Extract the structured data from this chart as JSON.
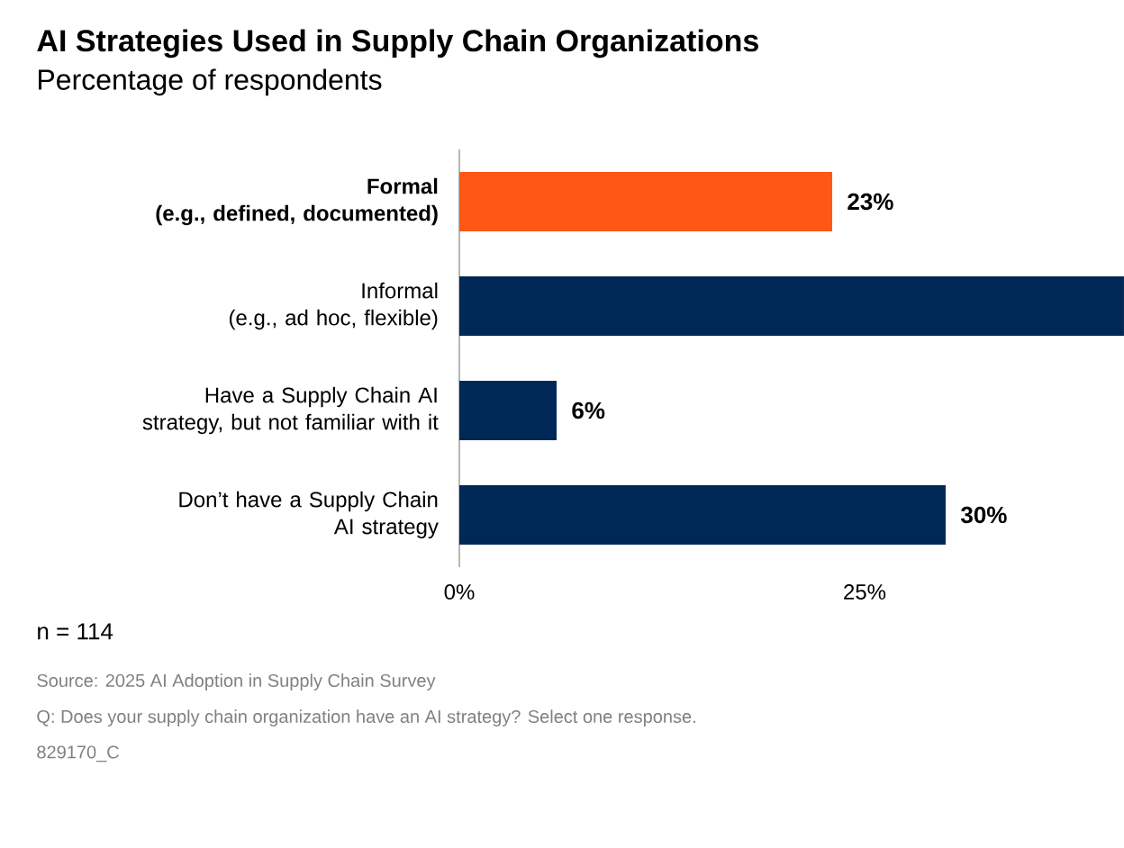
{
  "chart_data": {
    "type": "bar",
    "orientation": "horizontal",
    "title": "AI Strategies Used in Supply Chain Organizations",
    "subtitle": "Percentage of respondents",
    "categories": [
      "**Formal\n(e.g., defined, documented)**",
      "Informal\n(e.g., ad hoc, flexible)",
      "Have a Supply Chain AI\nstrategy, but not familiar with it",
      "Don’t have a Supply Chain\nAI strategy"
    ],
    "values": [
      23,
      41,
      6,
      30
    ],
    "colors": [
      "#fe5716",
      "#002856",
      "#002856",
      "#002856"
    ],
    "value_labels": [
      "23%",
      null,
      "6%",
      "30%"
    ],
    "xlim": [
      0,
      41
    ],
    "xticks": [
      {
        "value": 0,
        "label": "0%"
      },
      {
        "value": 25,
        "label": "25%"
      }
    ],
    "annotations": [
      "n = 114",
      "Source: 2025 AI Adoption in Supply Chain Survey",
      "Q: Does your supply chain organization have an AI strategy? Select one response.",
      "829170_C"
    ]
  }
}
